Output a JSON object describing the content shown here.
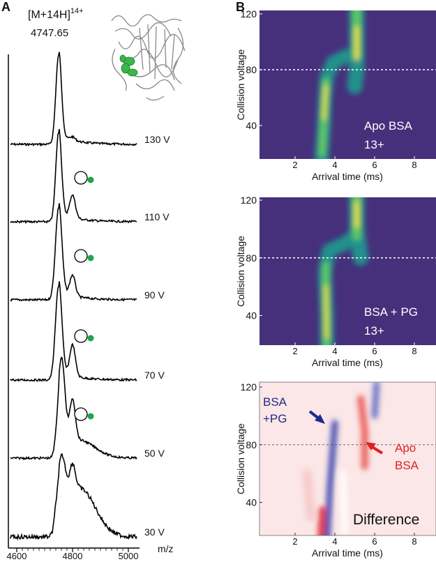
{
  "panel_a": {
    "label": "A",
    "ion_label": "[M+14H]",
    "ion_charge": "14+",
    "peak_mz": "4747.65",
    "traces": [
      "130 V",
      "110 V",
      "90 V",
      "70 V",
      "50 V",
      "30 V"
    ],
    "x_ticks": [
      4600,
      4800,
      5000
    ],
    "x_label": "m/z"
  },
  "panel_b": {
    "label": "B",
    "plots": [
      {
        "y_label": "Collision voltage",
        "x_label": "Arrival time (ms)",
        "y_ticks": [
          120,
          80,
          40
        ],
        "x_ticks": [
          2,
          4,
          6,
          8
        ],
        "annotation": [
          "Apo BSA",
          "13+"
        ]
      },
      {
        "y_label": "Collision voltage",
        "x_label": "Arrival time (ms)",
        "y_ticks": [
          120,
          80,
          40
        ],
        "x_ticks": [
          2,
          4,
          6,
          8
        ],
        "annotation": [
          "BSA + PG",
          "13+"
        ]
      },
      {
        "y_label": "Collision voltage",
        "x_label": "Arrival time (ms)",
        "y_ticks": [
          120,
          80,
          40
        ],
        "x_ticks": [
          2,
          4,
          6,
          8
        ],
        "annotation": [
          "Difference"
        ],
        "blue_label": [
          "BSA",
          "+PG"
        ],
        "red_label": [
          "Apo",
          "BSA"
        ]
      }
    ]
  }
}
